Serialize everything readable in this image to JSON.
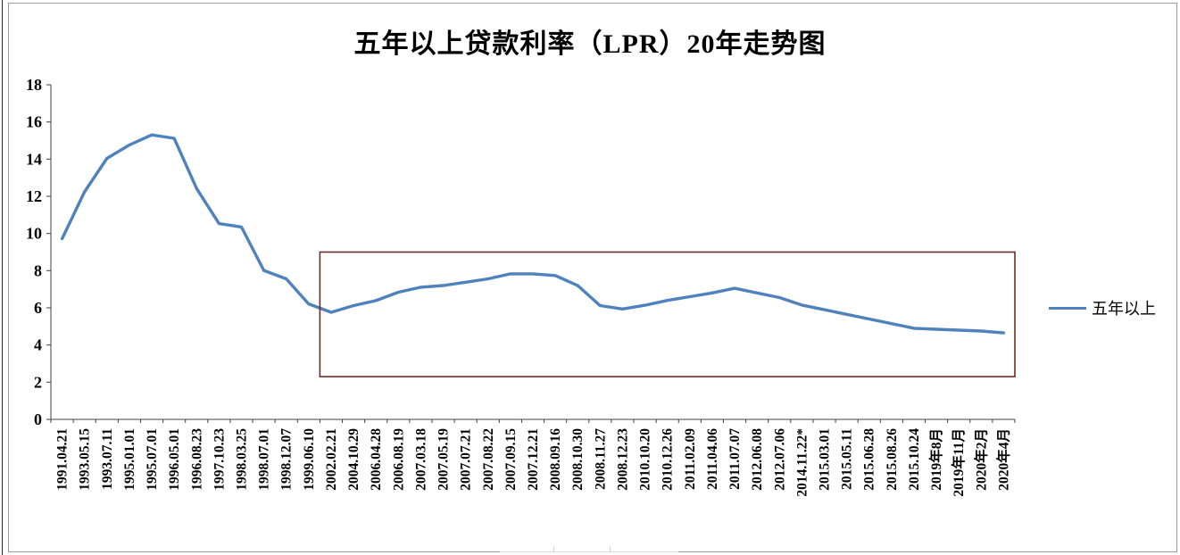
{
  "chart_data": {
    "type": "line",
    "title": "五年以上贷款利率（LPR）20年走势图",
    "xlabel": "",
    "ylabel": "",
    "ylim": [
      0,
      18
    ],
    "ytick_step": 2,
    "grid": false,
    "legend_position": "right",
    "categories": [
      "1991.04.21",
      "1993.05.15",
      "1993.07.11",
      "1995.01.01",
      "1995.07.01",
      "1996.05.01",
      "1996.08.23",
      "1997.10.23",
      "1998.03.25",
      "1998.07.01",
      "1998.12.07",
      "1999.06.10",
      "2002.02.21",
      "2004.10.29",
      "2006.04.28",
      "2006.08.19",
      "2007.03.18",
      "2007.05.19",
      "2007.07.21",
      "2007.08.22",
      "2007.09.15",
      "2007.12.21",
      "2008.09.16",
      "2008.10.30",
      "2008.11.27",
      "2008.12.23",
      "2010.10.20",
      "2010.12.26",
      "2011.02.09",
      "2011.04.06",
      "2011.07.07",
      "2012.06.08",
      "2012.07.06",
      "2014.11.22*",
      "2015.03.01",
      "2015.05.11",
      "2015.06.28",
      "2015.08.26",
      "2015.10.24",
      "2019年8月",
      "2019年11月",
      "2020年2月",
      "2020年4月"
    ],
    "series": [
      {
        "name": "五年以上",
        "color": "#4F81BD",
        "values": [
          9.72,
          12.24,
          14.04,
          14.76,
          15.3,
          15.12,
          12.42,
          10.53,
          10.35,
          8.01,
          7.56,
          6.21,
          5.76,
          6.12,
          6.39,
          6.84,
          7.11,
          7.2,
          7.38,
          7.56,
          7.83,
          7.83,
          7.74,
          7.2,
          6.12,
          5.94,
          6.14,
          6.4,
          6.6,
          6.8,
          7.05,
          6.8,
          6.55,
          6.15,
          5.9,
          5.65,
          5.4,
          5.15,
          4.9,
          4.85,
          4.8,
          4.75,
          4.65
        ]
      }
    ],
    "annotation_box": {
      "from_category_boundary": 12,
      "y_from": 2.3,
      "y_to": 9.0,
      "color": "#6F2B27"
    }
  }
}
